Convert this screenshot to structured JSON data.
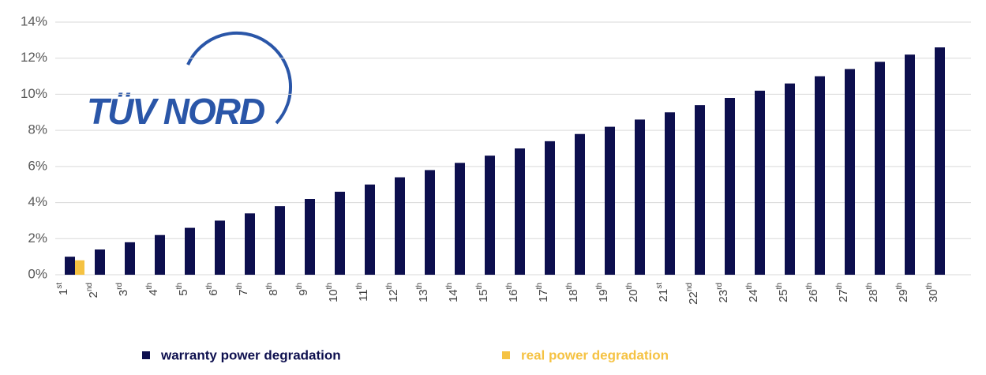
{
  "chart_data": {
    "type": "bar",
    "annotations": [
      "TÜV NORD"
    ],
    "categories": [
      "1st",
      "2nd",
      "3rd",
      "4th",
      "5th",
      "6th",
      "7th",
      "8th",
      "9th",
      "10th",
      "11th",
      "12th",
      "13th",
      "14th",
      "15th",
      "16th",
      "17th",
      "18th",
      "19th",
      "20th",
      "21st",
      "22nd",
      "23rd",
      "24th",
      "25th",
      "26th",
      "27th",
      "28th",
      "29th",
      "30th"
    ],
    "series": [
      {
        "name": "warranty power degradation",
        "color": "#0d0f4e",
        "values": [
          1.0,
          1.4,
          1.8,
          2.2,
          2.6,
          3.0,
          3.4,
          3.8,
          4.2,
          4.6,
          5.0,
          5.4,
          5.8,
          6.2,
          6.6,
          7.0,
          7.4,
          7.8,
          8.2,
          8.6,
          9.0,
          9.4,
          9.8,
          10.2,
          10.6,
          11.0,
          11.4,
          11.8,
          12.2,
          12.6
        ]
      },
      {
        "name": "real power degradation",
        "color": "#f5c242",
        "values": [
          0.8,
          null,
          null,
          null,
          null,
          null,
          null,
          null,
          null,
          null,
          null,
          null,
          null,
          null,
          null,
          null,
          null,
          null,
          null,
          null,
          null,
          null,
          null,
          null,
          null,
          null,
          null,
          null,
          null,
          null
        ]
      }
    ],
    "ylim": [
      0,
      14
    ],
    "yticks": [
      {
        "value": 0,
        "label": "0%"
      },
      {
        "value": 2,
        "label": "2%"
      },
      {
        "value": 4,
        "label": "4%"
      },
      {
        "value": 6,
        "label": "6%"
      },
      {
        "value": 8,
        "label": "8%"
      },
      {
        "value": 10,
        "label": "10%"
      },
      {
        "value": 12,
        "label": "12%"
      },
      {
        "value": 14,
        "label": "14%"
      }
    ],
    "grid": true,
    "legend": "bottom"
  }
}
